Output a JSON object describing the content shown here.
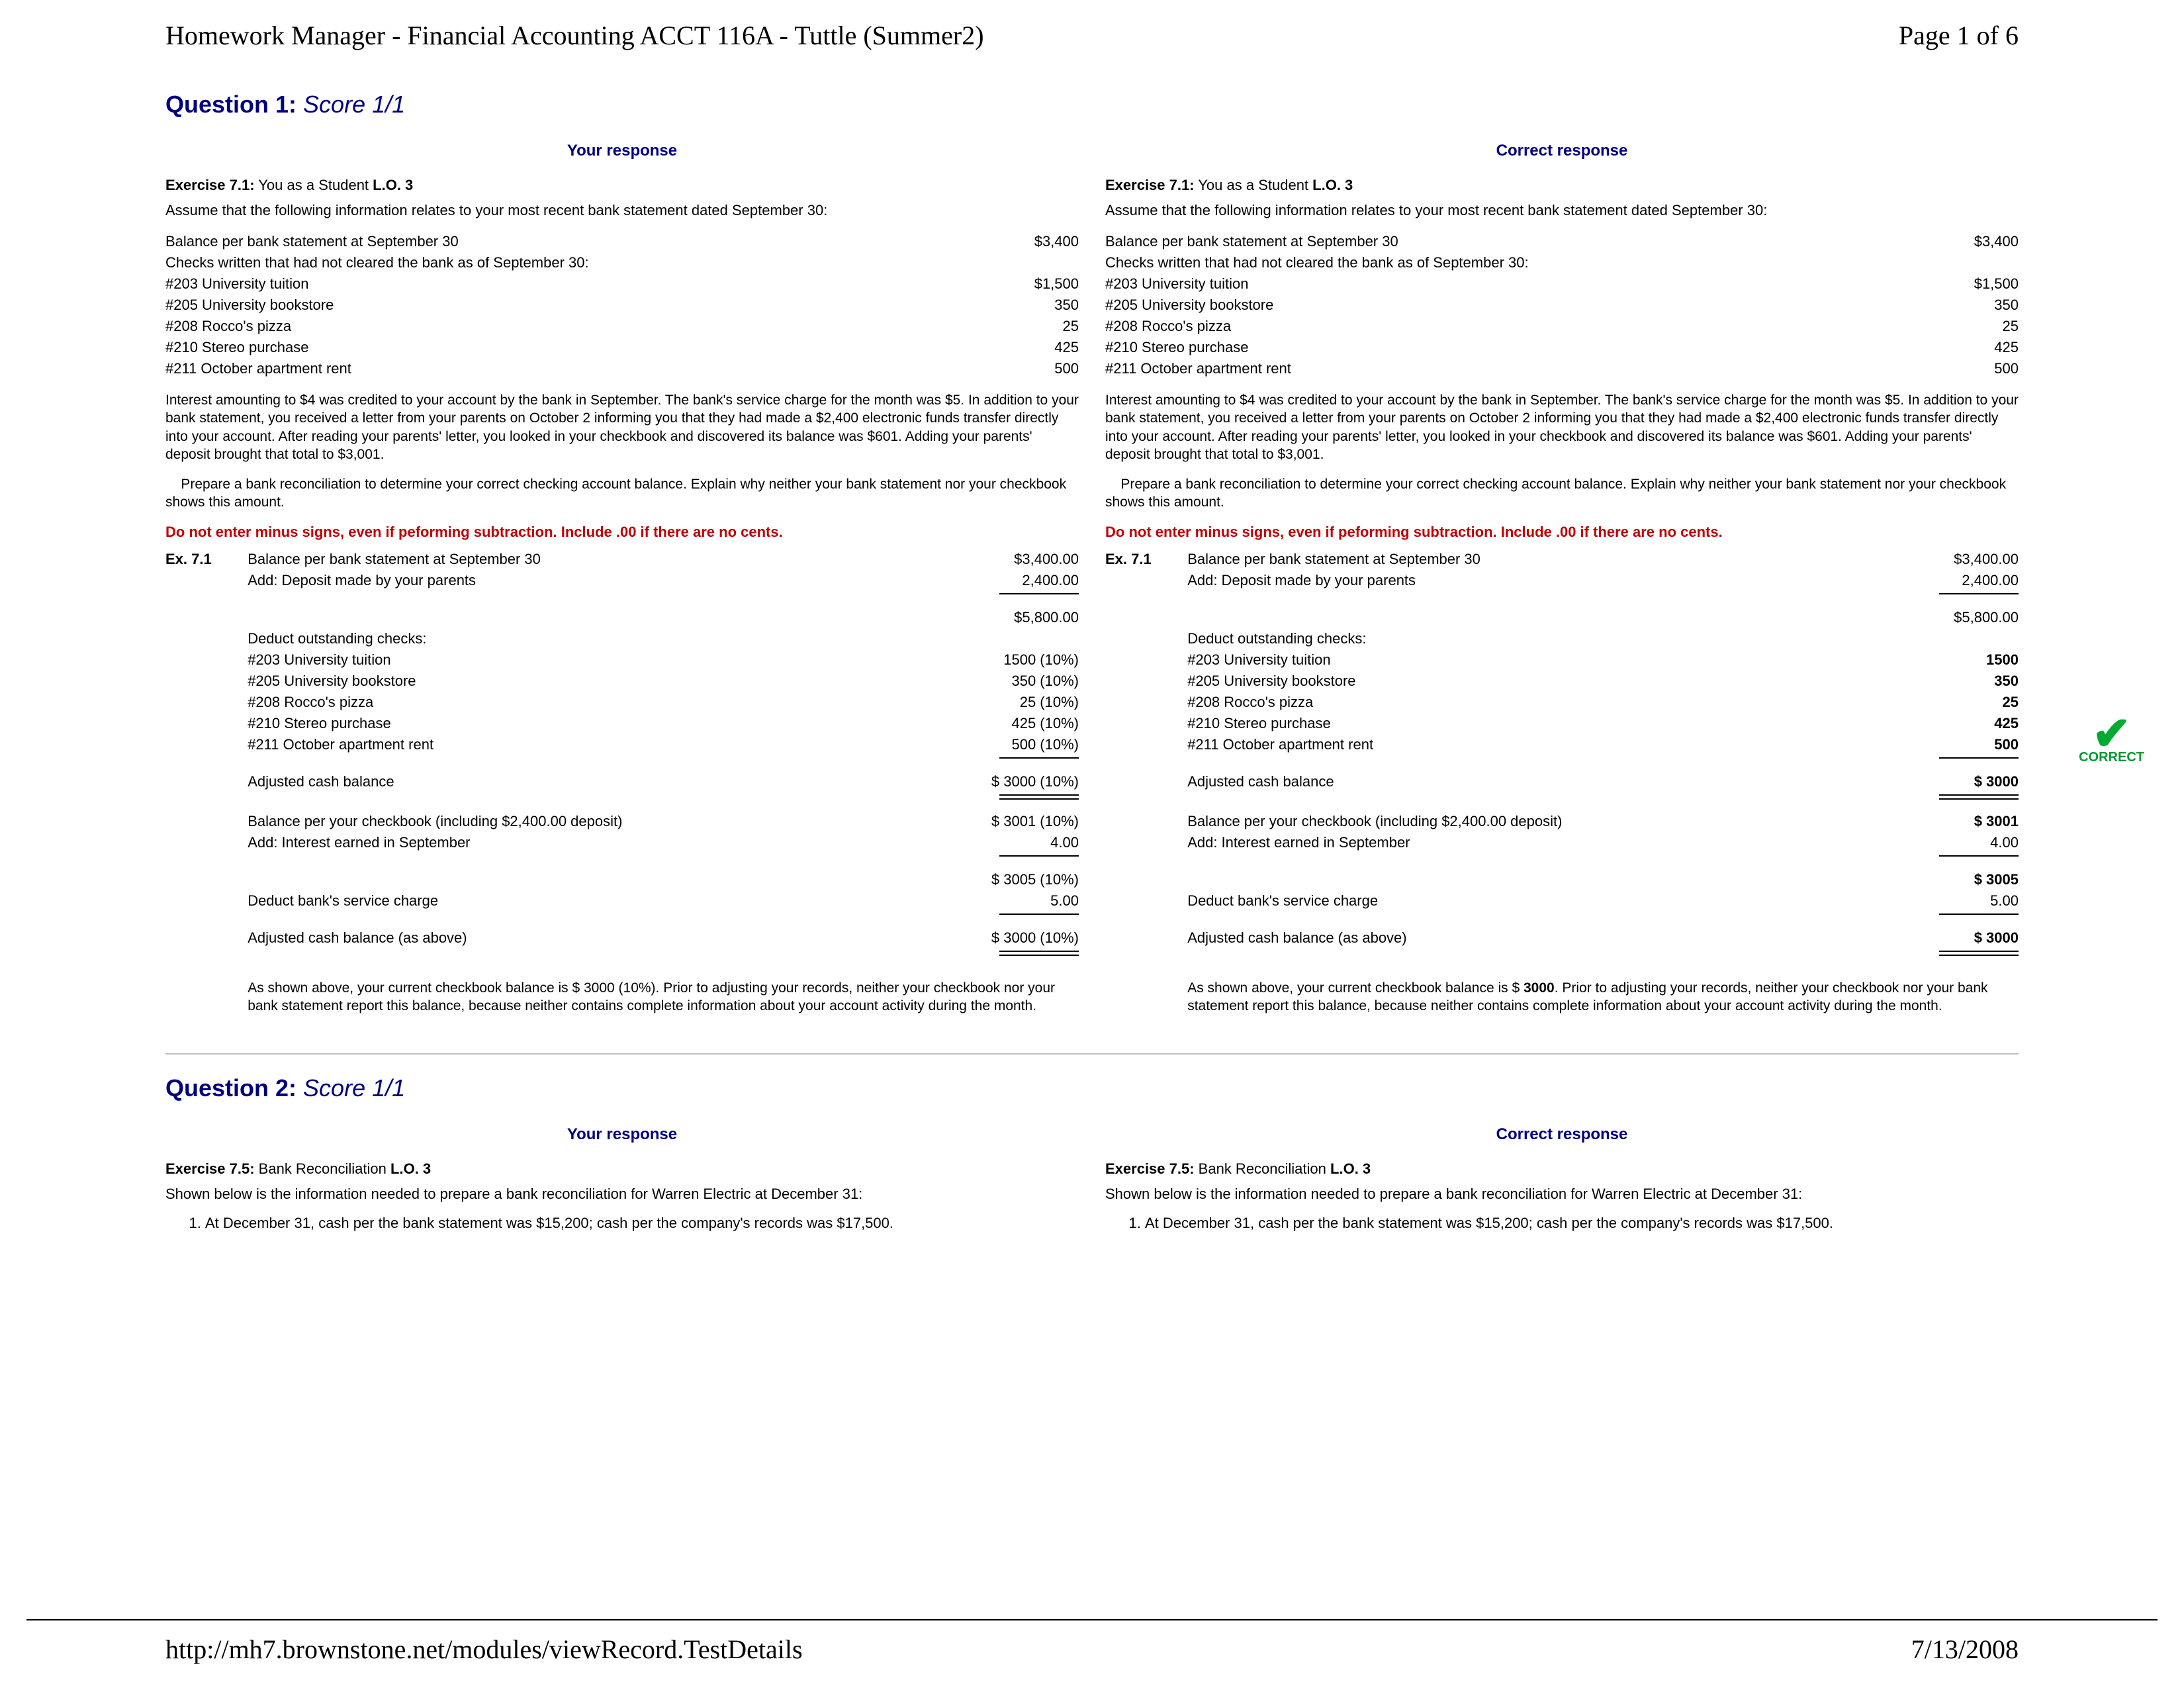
{
  "header": {
    "title": "Homework Manager - Financial Accounting ACCT 116A - Tuttle (Summer2)",
    "page": "Page 1 of 6"
  },
  "footer": {
    "url": "http://mh7.brownstone.net/modules/viewRecord.TestDetails",
    "date": "7/13/2008"
  },
  "q1": {
    "title_label": "Question 1:",
    "title_score": "Score 1/1",
    "your": "Your response",
    "correct": "Correct response",
    "ex_a": "Exercise 7.1:",
    "ex_b": "You as a Student",
    "ex_c": "L.O. 3",
    "intro": "Assume that the following information relates to your most recent bank statement dated September 30:",
    "rows": [
      {
        "l": "Balance per bank statement at September 30",
        "v": "$3,400"
      },
      {
        "l": "Checks written that had not cleared the bank as of September 30:",
        "v": ""
      },
      {
        "l": "#203 University tuition",
        "v": "$1,500"
      },
      {
        "l": "#205 University bookstore",
        "v": "350"
      },
      {
        "l": "#208 Rocco's pizza",
        "v": "25"
      },
      {
        "l": "#210 Stereo purchase",
        "v": "425"
      },
      {
        "l": "#211 October apartment rent",
        "v": "500"
      }
    ],
    "p1": "Interest amounting to $4 was credited to your account by the bank in September. The bank's service charge for the month was $5. In addition to your bank statement, you received a letter from your parents on October 2 informing you that they had made a $2,400 electronic funds transfer directly into your account. After reading your parents' letter, you looked in your checkbook and discovered its balance was $601. Adding your parents' deposit brought that total to $3,001.",
    "p2": "    Prepare a bank reconciliation to determine your correct checking account balance. Explain why neither your bank statement nor your checkbook shows this amount.",
    "red": "Do not enter minus signs, even if peforming subtraction. Include .00 if there are no cents.",
    "ex71": "Ex. 7.1",
    "recon_your": [
      [
        "Balance per bank statement at September 30",
        "$3,400.00"
      ],
      [
        "Add: Deposit made by your parents",
        "2,400.00"
      ],
      [
        "__line",
        ""
      ],
      [
        "",
        "$5,800.00"
      ],
      [
        "Deduct outstanding checks:",
        ""
      ],
      [
        "#203 University tuition",
        "1500 (10%)"
      ],
      [
        "#205 University bookstore",
        "350 (10%)"
      ],
      [
        "#208 Rocco's pizza",
        "25 (10%)"
      ],
      [
        "#210 Stereo purchase",
        "425 (10%)"
      ],
      [
        "#211 October apartment rent",
        "500 (10%)"
      ],
      [
        "__line",
        ""
      ],
      [
        "Adjusted cash balance",
        "$ 3000 (10%)"
      ],
      [
        "__dbl",
        ""
      ],
      [
        "Balance per your checkbook (including $2,400.00 deposit)",
        "$ 3001 (10%)"
      ],
      [
        "Add: Interest earned in September",
        "4.00"
      ],
      [
        "__line",
        ""
      ],
      [
        "",
        "$ 3005 (10%)"
      ],
      [
        "Deduct bank's service charge",
        "5.00"
      ],
      [
        "__line",
        ""
      ],
      [
        "Adjusted cash balance (as above)",
        "$ 3000 (10%)"
      ],
      [
        "__dbl",
        ""
      ]
    ],
    "recon_correct": [
      [
        "Balance per bank statement at September 30",
        "$3,400.00"
      ],
      [
        "Add: Deposit made by your parents",
        "2,400.00"
      ],
      [
        "__line",
        ""
      ],
      [
        "",
        "$5,800.00"
      ],
      [
        "Deduct outstanding checks:",
        ""
      ],
      [
        "#203 University tuition",
        "1500"
      ],
      [
        "#205 University bookstore",
        "350"
      ],
      [
        "#208 Rocco's pizza",
        "25"
      ],
      [
        "#210 Stereo purchase",
        "425"
      ],
      [
        "#211 October apartment rent",
        "500"
      ],
      [
        "__line",
        ""
      ],
      [
        "Adjusted cash balance",
        "$ 3000"
      ],
      [
        "__dbl",
        ""
      ],
      [
        "Balance per your checkbook (including $2,400.00 deposit)",
        "$ 3001"
      ],
      [
        "Add: Interest earned in September",
        "4.00"
      ],
      [
        "__line",
        ""
      ],
      [
        "",
        "$ 3005"
      ],
      [
        "Deduct bank's service charge",
        "5.00"
      ],
      [
        "__line",
        ""
      ],
      [
        "Adjusted cash balance (as above)",
        "$ 3000"
      ],
      [
        "__dbl",
        ""
      ]
    ],
    "concl_your": "As shown above, your current checkbook balance is $ 3000 (10%). Prior to adjusting your records, neither your checkbook nor your bank statement report this balance, because neither contains complete information about your account activity during the month.",
    "concl_correct_a": "As shown above, your current checkbook balance is $ ",
    "concl_correct_b": "3000",
    "concl_correct_c": ". Prior to adjusting your records, neither your checkbook nor your bank statement report this balance, because neither contains complete information about your account activity during the month.",
    "correct_label": "CORRECT"
  },
  "q2": {
    "title_label": "Question 2:",
    "title_score": "Score 1/1",
    "ex_a": "Exercise 7.5:",
    "ex_b": "Bank Reconciliation",
    "ex_c": "L.O. 3",
    "intro": "Shown below is the information needed to prepare a bank reconciliation for Warren Electric at December 31:",
    "item1": "At December 31, cash per the bank statement was $15,200; cash per the company's records was $17,500."
  }
}
